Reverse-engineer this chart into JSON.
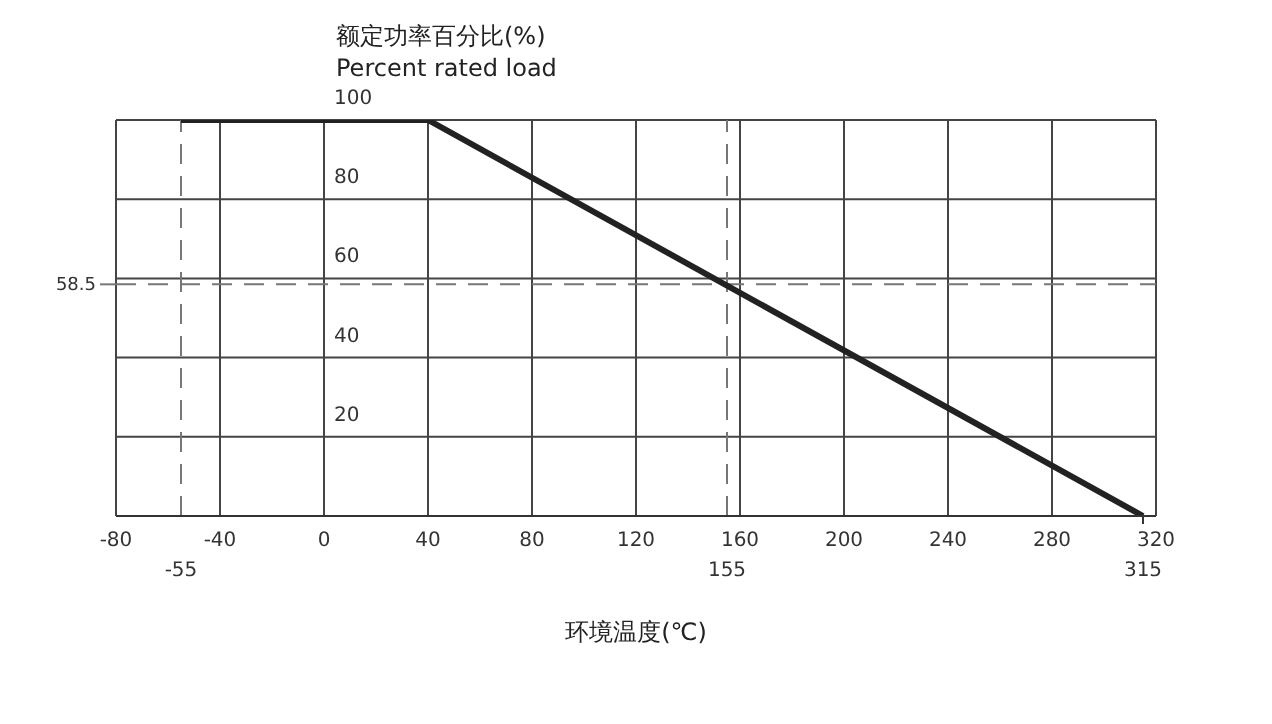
{
  "chart_data": {
    "type": "line",
    "ylabel": "额定功率百分比(%)\nPercent rated load",
    "xlabel": "环境温度(℃)",
    "xlim": [
      -80,
      320
    ],
    "xticks": [
      -80,
      -40,
      0,
      40,
      80,
      120,
      160,
      200,
      240,
      280,
      320
    ],
    "ylim": [
      0,
      100
    ],
    "yticks": [
      {
        "value": 0,
        "label": null
      },
      20,
      40,
      60,
      80,
      100
    ],
    "grid": true,
    "marker": "none",
    "line_style": "solid",
    "series": [
      {
        "color": "#222222",
        "x": [
          -55,
          40,
          315
        ],
        "values": [
          100,
          100,
          0
        ]
      }
    ],
    "ref_lines": [
      {
        "axis": "x",
        "value": -55,
        "label": "-55",
        "line_style": "dashed",
        "color": "#777777"
      },
      {
        "axis": "x",
        "value": 155,
        "label": "155",
        "line_style": "dashed",
        "color": "#777777"
      },
      {
        "axis": "y",
        "value": 58.5,
        "label": "58.5",
        "line_style": "dashed",
        "color": "#777777"
      }
    ],
    "annotations": [
      {
        "text": "315",
        "x": 315,
        "y": 0
      }
    ]
  }
}
